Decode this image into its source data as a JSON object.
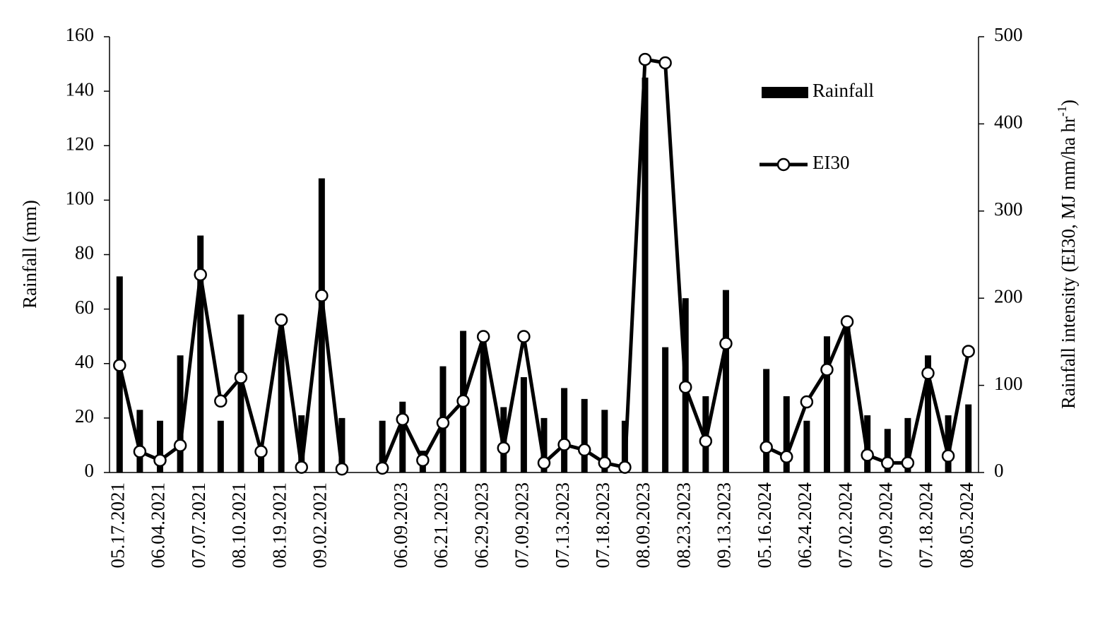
{
  "chart_data": {
    "type": "combo",
    "categories": [
      "05.17.2021",
      null,
      "06.04.2021",
      null,
      "07.07.2021",
      null,
      "08.10.2021",
      null,
      "08.19.2021",
      null,
      "09.02.2021",
      null,
      null,
      null,
      "06.09.2023",
      null,
      "06.21.2023",
      null,
      "06.29.2023",
      null,
      "07.09.2023",
      null,
      "07.13.2023",
      null,
      "07.18.2023",
      null,
      "08.09.2023",
      null,
      "08.23.2023",
      null,
      "09.13.2023",
      null,
      "05.16.2024",
      null,
      "06.24.2024",
      null,
      "07.02.2024",
      null,
      "07.09.2024",
      null,
      "07.18.2024",
      null,
      "08.05.2024"
    ],
    "series": [
      {
        "name": "Rainfall",
        "type": "bar",
        "axis": "y",
        "color": "#000000",
        "values": [
          72,
          23,
          19,
          43,
          87,
          19,
          58,
          8,
          52,
          21,
          108,
          20,
          null,
          19,
          26,
          8,
          39,
          52,
          49,
          24,
          35,
          20,
          31,
          27,
          23,
          19,
          145,
          46,
          64,
          28,
          67,
          null,
          38,
          28,
          19,
          50,
          56,
          21,
          16,
          20,
          43,
          21,
          25
        ]
      },
      {
        "name": "EI30",
        "type": "line",
        "axis": "y2",
        "color": "#000000",
        "values": [
          123,
          24,
          14,
          31,
          227,
          82,
          109,
          24,
          175,
          6,
          203,
          4,
          null,
          5,
          61,
          14,
          57,
          82,
          156,
          28,
          156,
          11,
          32,
          26,
          11,
          6,
          474,
          470,
          98,
          36,
          148,
          null,
          29,
          18,
          81,
          118,
          173,
          20,
          11,
          11,
          114,
          19,
          139
        ]
      }
    ],
    "ylabel": "Rainfall (mm)",
    "y2label": [
      "Rainfall intensity (EI30, MJ mm/ha hr",
      "-1",
      ")"
    ],
    "ylim": [
      0,
      160
    ],
    "yticks": [
      0,
      20,
      40,
      60,
      80,
      100,
      120,
      140,
      160
    ],
    "y2lim": [
      0,
      500
    ],
    "y2ticks": [
      0,
      100,
      200,
      300,
      400,
      500
    ],
    "legend": "upper right",
    "grid": false
  }
}
